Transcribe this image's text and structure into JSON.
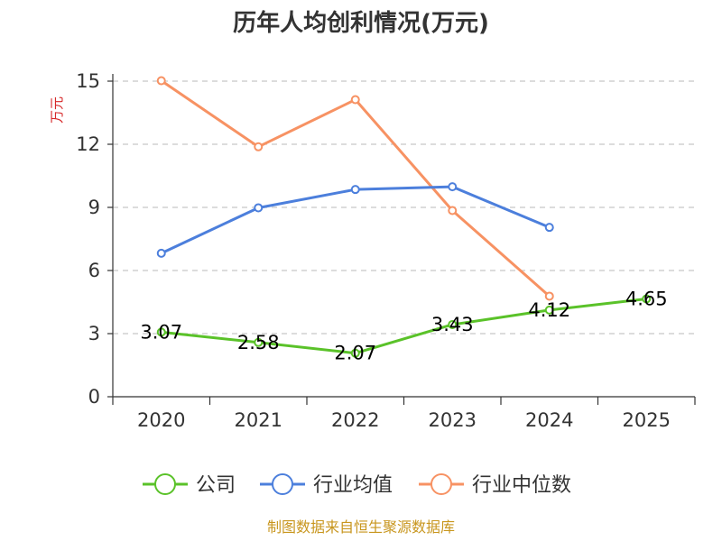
{
  "chart_data": {
    "type": "line",
    "title": "历年人均创利情况(万元)",
    "ylabel": "万元",
    "xlabel": "",
    "categories": [
      "2020",
      "2021",
      "2022",
      "2023",
      "2024",
      "2025"
    ],
    "ylim": [
      0,
      15
    ],
    "yticks": [
      0,
      3,
      6,
      9,
      12,
      15
    ],
    "grid": true,
    "legend_position": "bottom",
    "series": [
      {
        "name": "公司",
        "color": "#5ac229",
        "values": [
          3.07,
          2.58,
          2.07,
          3.43,
          4.12,
          4.65
        ],
        "labels": [
          "3.07",
          "2.58",
          "2.07",
          "3.43",
          "4.12",
          "4.65"
        ]
      },
      {
        "name": "行业均值",
        "color": "#4c7fdc",
        "values": [
          6.82,
          8.98,
          9.85,
          9.98,
          8.05,
          null
        ]
      },
      {
        "name": "行业中位数",
        "color": "#f79263",
        "values": [
          15.02,
          11.88,
          14.12,
          8.85,
          4.78,
          null
        ]
      }
    ]
  },
  "source": "制图数据来自恒生聚源数据库"
}
